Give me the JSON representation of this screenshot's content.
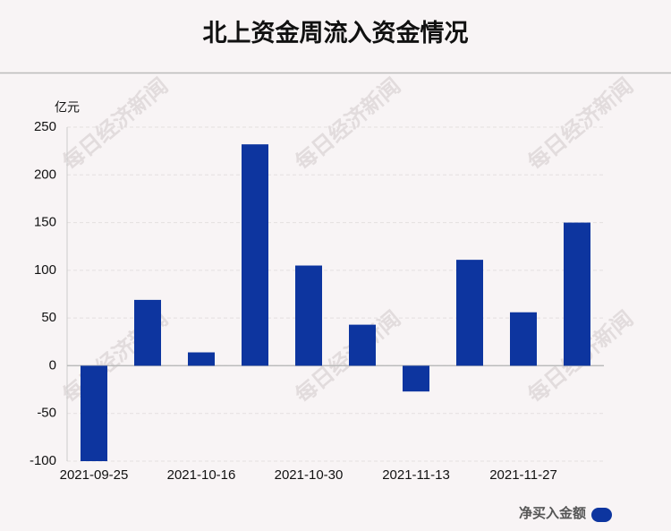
{
  "chart_data": {
    "type": "bar",
    "title": "北上资金周流入资金情况",
    "y_unit": "亿元",
    "categories": [
      "2021-09-25",
      null,
      "2021-10-16",
      null,
      "2021-10-30",
      null,
      "2021-11-13",
      null,
      "2021-11-27",
      null
    ],
    "series": [
      {
        "name": "净买入金额",
        "color": "#0d359f",
        "values": [
          -100,
          69,
          14,
          232,
          105,
          43,
          -27,
          111,
          56,
          150
        ]
      }
    ],
    "ylim": [
      -100,
      250
    ],
    "yticks": [
      -100,
      -50,
      0,
      50,
      100,
      150,
      200,
      250
    ],
    "grid": true,
    "legend": "bottom-right",
    "watermark": "每日经济新闻"
  }
}
